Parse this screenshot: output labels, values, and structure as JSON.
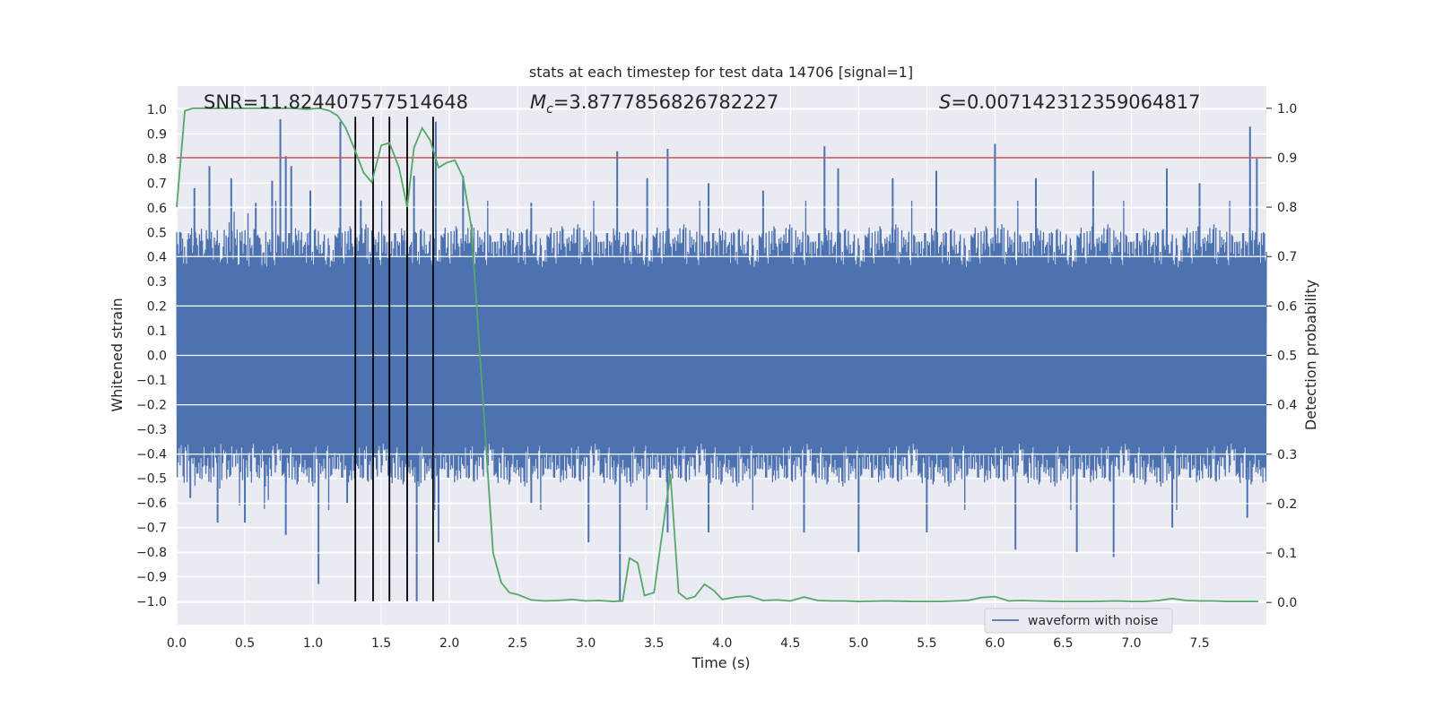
{
  "chart_data": {
    "type": "line",
    "title": "stats at each timestep for test data 14706 [signal=1]",
    "xlabel": "Time (s)",
    "ylabel": "Whitened strain",
    "y2label": "Detection probability",
    "xlim": [
      0.0,
      7.99
    ],
    "ylim": [
      -1.095,
      1.095
    ],
    "y2lim": [
      -0.045,
      1.045
    ],
    "x_ticks": [
      "0.0",
      "0.5",
      "1.0",
      "1.5",
      "2.0",
      "2.5",
      "3.0",
      "3.5",
      "4.0",
      "4.5",
      "5.0",
      "5.5",
      "6.0",
      "6.5",
      "7.0",
      "7.5"
    ],
    "y_ticks": [
      "1.0",
      "0.9",
      "0.8",
      "0.7",
      "0.6",
      "0.5",
      "0.4",
      "0.3",
      "0.2",
      "0.1",
      "0.0",
      "-0.1",
      "-0.2",
      "-0.3",
      "-0.4",
      "-0.5",
      "-0.6",
      "-0.7",
      "-0.8",
      "-0.9",
      "-1.0"
    ],
    "y2_ticks": [
      "1.0",
      "0.9",
      "0.8",
      "0.7",
      "0.6",
      "0.5",
      "0.4",
      "0.3",
      "0.2",
      "0.1",
      "0.0"
    ],
    "annotations": {
      "snr": "SNR=11.824407577514648",
      "mc_symbol": "M",
      "mc_sub": "c",
      "mc_value": "=3.8777856826782227",
      "s_symbol": "S",
      "s_value": "=0.007142312359064817"
    },
    "legend": {
      "label": "waveform with noise",
      "position": "bottom-right"
    },
    "threshold": {
      "value": 0.9,
      "color": "#c44e52"
    },
    "vertical_markers": [
      1.31,
      1.44,
      1.56,
      1.69,
      1.88
    ],
    "waveform_envelope": {
      "name": "waveform with noise",
      "color": "#4c72b0",
      "core_amplitude": 0.36,
      "spike_peaks_upper": [
        [
          0.03,
          0.5
        ],
        [
          0.13,
          0.68
        ],
        [
          0.24,
          0.77
        ],
        [
          0.4,
          0.72
        ],
        [
          0.58,
          0.62
        ],
        [
          0.7,
          0.71
        ],
        [
          0.76,
          0.96
        ],
        [
          0.8,
          0.81
        ],
        [
          0.84,
          0.77
        ],
        [
          0.98,
          0.67
        ],
        [
          1.2,
          0.95
        ],
        [
          1.35,
          0.63
        ],
        [
          1.74,
          0.73
        ],
        [
          1.9,
          0.95
        ],
        [
          2.1,
          0.73
        ],
        [
          2.6,
          0.62
        ],
        [
          3.23,
          0.83
        ],
        [
          3.45,
          0.72
        ],
        [
          3.6,
          0.84
        ],
        [
          3.9,
          0.7
        ],
        [
          4.3,
          0.67
        ],
        [
          4.75,
          0.85
        ],
        [
          4.85,
          0.76
        ],
        [
          5.25,
          0.72
        ],
        [
          5.57,
          0.75
        ],
        [
          6.0,
          0.86
        ],
        [
          6.3,
          0.72
        ],
        [
          6.72,
          0.75
        ],
        [
          7.26,
          0.76
        ],
        [
          7.5,
          0.7
        ],
        [
          7.87,
          0.93
        ],
        [
          7.92,
          0.8
        ]
      ],
      "spike_peaks_lower": [
        [
          0.1,
          -0.58
        ],
        [
          0.3,
          -0.68
        ],
        [
          0.5,
          -0.68
        ],
        [
          0.8,
          -0.73
        ],
        [
          1.04,
          -0.93
        ],
        [
          1.25,
          -0.6
        ],
        [
          1.76,
          -1.0
        ],
        [
          1.92,
          -0.76
        ],
        [
          2.6,
          -0.6
        ],
        [
          3.02,
          -0.76
        ],
        [
          3.25,
          -1.0
        ],
        [
          3.6,
          -0.72
        ],
        [
          3.9,
          -0.72
        ],
        [
          4.6,
          -0.72
        ],
        [
          5.0,
          -0.8
        ],
        [
          5.5,
          -0.72
        ],
        [
          6.15,
          -0.79
        ],
        [
          6.6,
          -0.8
        ],
        [
          6.87,
          -0.82
        ],
        [
          7.3,
          -0.7
        ],
        [
          7.85,
          -0.66
        ]
      ]
    },
    "detection_probability": {
      "name": "Detection probability",
      "color": "#55a868",
      "x": [
        0.0,
        0.06,
        0.12,
        0.25,
        0.4,
        0.55,
        0.7,
        0.85,
        0.95,
        1.05,
        1.12,
        1.18,
        1.24,
        1.3,
        1.37,
        1.43,
        1.5,
        1.56,
        1.63,
        1.69,
        1.74,
        1.8,
        1.86,
        1.92,
        1.98,
        2.04,
        2.1,
        2.16,
        2.2,
        2.26,
        2.32,
        2.38,
        2.44,
        2.5,
        2.6,
        2.7,
        2.8,
        2.9,
        3.0,
        3.1,
        3.2,
        3.27,
        3.32,
        3.38,
        3.43,
        3.5,
        3.56,
        3.62,
        3.68,
        3.74,
        3.8,
        3.87,
        3.94,
        4.0,
        4.1,
        4.2,
        4.3,
        4.4,
        4.5,
        4.6,
        4.7,
        4.8,
        4.9,
        5.0,
        5.2,
        5.4,
        5.6,
        5.8,
        5.9,
        6.0,
        6.1,
        6.2,
        6.3,
        6.5,
        6.7,
        6.9,
        7.0,
        7.1,
        7.2,
        7.3,
        7.4,
        7.5,
        7.6,
        7.7,
        7.8,
        7.93
      ],
      "y": [
        0.8,
        0.995,
        1.0,
        1.0,
        1.0,
        1.0,
        1.0,
        1.0,
        0.998,
        1.0,
        0.995,
        0.985,
        0.96,
        0.92,
        0.87,
        0.85,
        0.925,
        0.93,
        0.88,
        0.8,
        0.92,
        0.96,
        0.935,
        0.88,
        0.89,
        0.895,
        0.86,
        0.76,
        0.6,
        0.35,
        0.1,
        0.04,
        0.02,
        0.016,
        0.005,
        0.003,
        0.004,
        0.006,
        0.003,
        0.004,
        0.002,
        0.003,
        0.09,
        0.08,
        0.014,
        0.02,
        0.14,
        0.26,
        0.02,
        0.007,
        0.012,
        0.037,
        0.024,
        0.006,
        0.011,
        0.013,
        0.004,
        0.005,
        0.003,
        0.011,
        0.004,
        0.003,
        0.003,
        0.002,
        0.003,
        0.002,
        0.002,
        0.004,
        0.01,
        0.012,
        0.003,
        0.004,
        0.003,
        0.002,
        0.002,
        0.003,
        0.002,
        0.002,
        0.004,
        0.008,
        0.004,
        0.003,
        0.003,
        0.002,
        0.002,
        0.002
      ]
    }
  }
}
